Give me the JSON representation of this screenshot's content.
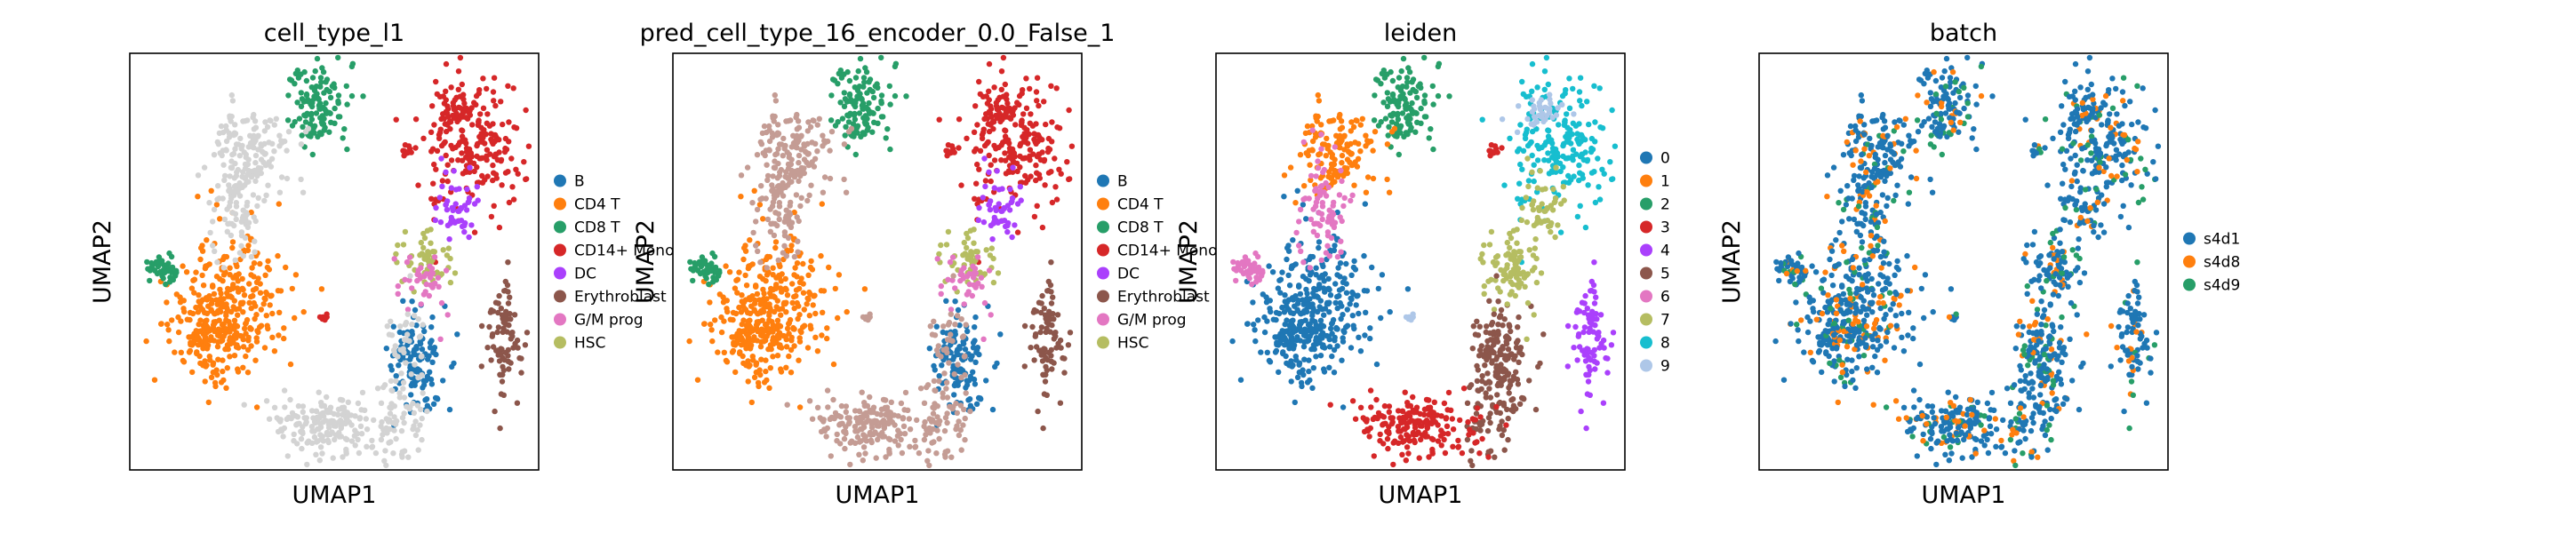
{
  "figure": {
    "panels": [
      {
        "title": "cell_type_l1",
        "xlabel": "UMAP1",
        "ylabel": "UMAP2",
        "legend": [
          "B",
          "CD4 T",
          "CD8 T",
          "CD14+ Mono",
          "DC",
          "Erythroblast",
          "G/M prog",
          "HSC"
        ],
        "colors": [
          "#1f77b4",
          "#ff7f0e",
          "#279e68",
          "#d62728",
          "#aa40fc",
          "#8c564b",
          "#e377c2",
          "#b5bd61"
        ]
      },
      {
        "title": "pred_cell_type_16_encoder_0.0_False_1",
        "xlabel": "UMAP1",
        "ylabel": "UMAP2",
        "legend": [
          "B",
          "CD4 T",
          "CD8 T",
          "CD14+ Mono",
          "DC",
          "Erythroblast",
          "G/M prog",
          "HSC"
        ],
        "colors": [
          "#1f77b4",
          "#ff7f0e",
          "#279e68",
          "#d62728",
          "#aa40fc",
          "#8c564b",
          "#e377c2",
          "#b5bd61"
        ]
      },
      {
        "title": "leiden",
        "xlabel": "UMAP1",
        "ylabel": "UMAP2",
        "legend": [
          "0",
          "1",
          "2",
          "3",
          "4",
          "5",
          "6",
          "7",
          "8",
          "9"
        ],
        "colors": [
          "#1f77b4",
          "#ff7f0e",
          "#279e68",
          "#d62728",
          "#aa40fc",
          "#8c564b",
          "#e377c2",
          "#b5bd61",
          "#17becf",
          "#aec7e8"
        ]
      },
      {
        "title": "batch",
        "xlabel": "UMAP1",
        "ylabel": "UMAP2",
        "legend": [
          "s4d1",
          "s4d8",
          "s4d9"
        ],
        "colors": [
          "#1f77b4",
          "#ff7f0e",
          "#279e68"
        ]
      }
    ]
  },
  "chart_data": [
    {
      "type": "scatter",
      "title": "cell_type_l1",
      "xlabel": "UMAP1",
      "ylabel": "UMAP2",
      "legend_position": "right",
      "categories": [
        "B",
        "CD4 T",
        "CD8 T",
        "CD14+ Mono",
        "DC",
        "Erythroblast",
        "G/M prog",
        "HSC"
      ],
      "unassigned_color": "#d3d3d3"
    },
    {
      "type": "scatter",
      "title": "pred_cell_type_16_encoder_0.0_False_1",
      "xlabel": "UMAP1",
      "ylabel": "UMAP2",
      "legend_position": "right",
      "categories": [
        "B",
        "CD4 T",
        "CD8 T",
        "CD14+ Mono",
        "DC",
        "Erythroblast",
        "G/M prog",
        "HSC"
      ],
      "unassigned_color": "#c49c94"
    },
    {
      "type": "scatter",
      "title": "leiden",
      "xlabel": "UMAP1",
      "ylabel": "UMAP2",
      "legend_position": "right",
      "categories": [
        "0",
        "1",
        "2",
        "3",
        "4",
        "5",
        "6",
        "7",
        "8",
        "9"
      ]
    },
    {
      "type": "scatter",
      "title": "batch",
      "xlabel": "UMAP1",
      "ylabel": "UMAP2",
      "legend_position": "right",
      "categories": [
        "s4d1",
        "s4d8",
        "s4d9"
      ]
    }
  ]
}
